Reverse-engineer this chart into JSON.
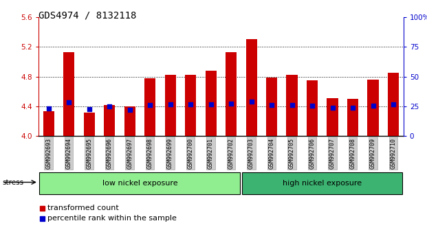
{
  "title": "GDS4974 / 8132118",
  "categories": [
    "GSM992693",
    "GSM992694",
    "GSM992695",
    "GSM992696",
    "GSM992697",
    "GSM992698",
    "GSM992699",
    "GSM992700",
    "GSM992701",
    "GSM992702",
    "GSM992703",
    "GSM992704",
    "GSM992705",
    "GSM992706",
    "GSM992707",
    "GSM992708",
    "GSM992709",
    "GSM992710"
  ],
  "bar_values": [
    4.33,
    5.13,
    4.32,
    4.42,
    4.4,
    4.78,
    4.82,
    4.82,
    4.88,
    5.13,
    5.3,
    4.79,
    4.82,
    4.75,
    4.51,
    4.5,
    4.76,
    4.85
  ],
  "percentile_values": [
    4.37,
    4.45,
    4.36,
    4.4,
    4.35,
    4.42,
    4.43,
    4.43,
    4.43,
    4.44,
    4.46,
    4.42,
    4.42,
    4.41,
    4.38,
    4.38,
    4.41,
    4.43
  ],
  "ylim_left": [
    4.0,
    5.6
  ],
  "ylim_right": [
    0,
    100
  ],
  "yticks_left": [
    4.0,
    4.4,
    4.8,
    5.2,
    5.6
  ],
  "yticks_right": [
    0,
    25,
    50,
    75,
    100
  ],
  "bar_color": "#cc0000",
  "dot_color": "#0000cc",
  "bar_width": 0.55,
  "group1_label": "low nickel exposure",
  "group2_label": "high nickel exposure",
  "group1_n": 10,
  "group2_n": 8,
  "group1_color": "#90ee90",
  "group2_color": "#3cb371",
  "stress_label": "stress",
  "legend1": "transformed count",
  "legend2": "percentile rank within the sample",
  "grid_lines": [
    4.4,
    4.8,
    5.2
  ],
  "background_color": "#ffffff",
  "title_fontsize": 10,
  "axis_tick_color_left": "#cc0000",
  "axis_tick_color_right": "#0000cc"
}
